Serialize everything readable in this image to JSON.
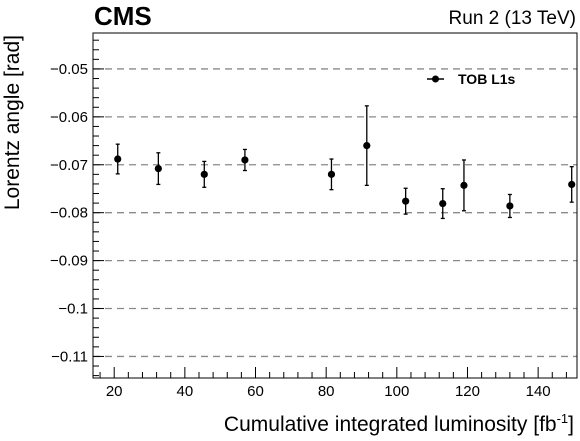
{
  "chart_data": {
    "type": "scatter",
    "experiment_label": "CMS",
    "run_label": "Run 2 (13 TeV)",
    "xlabel": "Cumulative integrated luminosity [fb",
    "xlabel_sup": "-1",
    "xlabel_close": "]",
    "ylabel": "Lorentz angle [rad]",
    "xlim": [
      14,
      151
    ],
    "ylim": [
      -0.1145,
      -0.0425
    ],
    "xticks": [
      20,
      40,
      60,
      80,
      100,
      120,
      140
    ],
    "yticks": [
      -0.05,
      -0.06,
      -0.07,
      -0.08,
      -0.09,
      -0.1,
      -0.11
    ],
    "ytick_labels": [
      "−0.05",
      "−0.06",
      "−0.07",
      "−0.08",
      "−0.09",
      "−0.1",
      "−0.11"
    ],
    "grid": "horizontal-dashed",
    "legend_position": "top-right",
    "series": [
      {
        "name": "TOB L1s",
        "color": "#000000",
        "points": [
          {
            "x": 21,
            "y": -0.0688,
            "err": 0.0031
          },
          {
            "x": 32.5,
            "y": -0.0708,
            "err": 0.0033
          },
          {
            "x": 45.5,
            "y": -0.072,
            "err": 0.0027
          },
          {
            "x": 57,
            "y": -0.069,
            "err": 0.0022
          },
          {
            "x": 81.5,
            "y": -0.072,
            "err": 0.0032
          },
          {
            "x": 91.5,
            "y": -0.066,
            "err": 0.0083
          },
          {
            "x": 102.5,
            "y": -0.0776,
            "err": 0.0027
          },
          {
            "x": 113,
            "y": -0.0781,
            "err": 0.0031
          },
          {
            "x": 119,
            "y": -0.0743,
            "err": 0.0053
          },
          {
            "x": 132,
            "y": -0.0786,
            "err": 0.0024
          },
          {
            "x": 149.5,
            "y": -0.0741,
            "err": 0.0037
          }
        ]
      }
    ]
  }
}
